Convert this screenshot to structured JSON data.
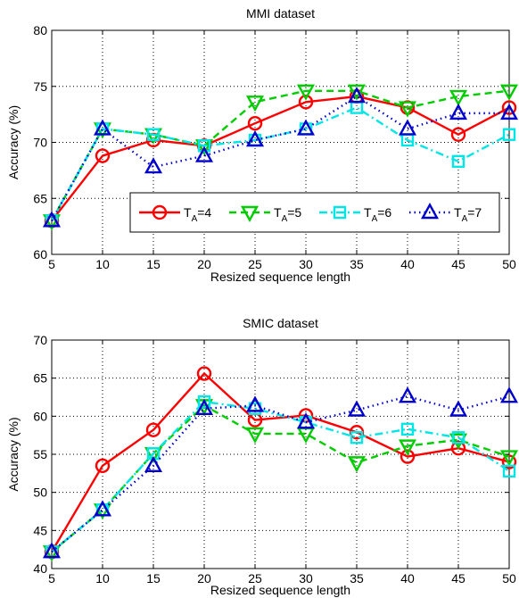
{
  "chart_data": [
    {
      "type": "line",
      "title": "MMI dataset",
      "xlabel": "Resized sequence length",
      "ylabel": "Accuracy (%)",
      "x": [
        5,
        10,
        15,
        20,
        25,
        30,
        35,
        40,
        45,
        50
      ],
      "xlim": [
        5,
        50
      ],
      "ylim": [
        60,
        80
      ],
      "xticks": [
        5,
        10,
        15,
        20,
        25,
        30,
        35,
        40,
        45,
        50
      ],
      "yticks": [
        60,
        65,
        70,
        75,
        80
      ],
      "grid": true,
      "legend": {
        "placement": "lower-right",
        "orientation": "horizontal"
      },
      "series": [
        {
          "name": "T_A=4",
          "label_main": "T",
          "label_sub": "A",
          "label_rest": "=4",
          "color": "#ff0000",
          "linestyle": "solid",
          "marker": "circle",
          "values": [
            63.0,
            68.8,
            70.2,
            69.7,
            71.7,
            73.6,
            74.1,
            73.1,
            70.7,
            73.1
          ]
        },
        {
          "name": "T_A=5",
          "label_main": "T",
          "label_sub": "A",
          "label_rest": "=5",
          "color": "#00cc00",
          "linestyle": "dashed",
          "marker": "triangle-down",
          "values": [
            63.0,
            71.2,
            70.7,
            69.7,
            73.6,
            74.6,
            74.6,
            73.1,
            74.1,
            74.6
          ]
        },
        {
          "name": "T_A=6",
          "label_main": "T",
          "label_sub": "A",
          "label_rest": "=6",
          "color": "#00e5e5",
          "linestyle": "dashdot",
          "marker": "square",
          "values": [
            63.0,
            71.2,
            70.7,
            69.7,
            70.2,
            71.2,
            73.1,
            70.2,
            68.3,
            70.7
          ]
        },
        {
          "name": "T_A=7",
          "label_main": "T",
          "label_sub": "A",
          "label_rest": "=7",
          "color": "#0000cc",
          "linestyle": "dotted",
          "marker": "triangle-up",
          "values": [
            63.0,
            71.2,
            67.8,
            68.8,
            70.2,
            71.2,
            74.1,
            71.2,
            72.6,
            72.6
          ]
        }
      ]
    },
    {
      "type": "line",
      "title": "SMIC dataset",
      "xlabel": "Resized sequence length",
      "ylabel": "Accuracy (%)",
      "x": [
        5,
        10,
        15,
        20,
        25,
        30,
        35,
        40,
        45,
        50
      ],
      "xlim": [
        5,
        50
      ],
      "ylim": [
        40,
        70
      ],
      "xticks": [
        5,
        10,
        15,
        20,
        25,
        30,
        35,
        40,
        45,
        50
      ],
      "yticks": [
        40,
        45,
        50,
        55,
        60,
        65,
        70
      ],
      "grid": true,
      "series": [
        {
          "name": "T_A=4",
          "color": "#ff0000",
          "linestyle": "solid",
          "marker": "circle",
          "values": [
            42.2,
            53.5,
            58.2,
            65.6,
            59.5,
            60.1,
            57.9,
            54.7,
            55.8,
            54.0
          ]
        },
        {
          "name": "T_A=5",
          "color": "#00cc00",
          "linestyle": "dashed",
          "marker": "triangle-down",
          "values": [
            42.2,
            47.7,
            55.1,
            61.4,
            57.7,
            57.7,
            53.9,
            56.1,
            56.9,
            54.7
          ]
        },
        {
          "name": "T_A=6",
          "color": "#00e5e5",
          "linestyle": "dashdot",
          "marker": "square",
          "values": [
            42.2,
            47.7,
            55.1,
            61.9,
            61.0,
            59.2,
            57.2,
            58.3,
            57.2,
            52.8
          ]
        },
        {
          "name": "T_A=7",
          "color": "#0000cc",
          "linestyle": "dotted",
          "marker": "triangle-up",
          "values": [
            42.2,
            47.7,
            53.5,
            61.0,
            61.4,
            59.2,
            60.8,
            62.6,
            60.8,
            62.6
          ]
        }
      ]
    }
  ]
}
